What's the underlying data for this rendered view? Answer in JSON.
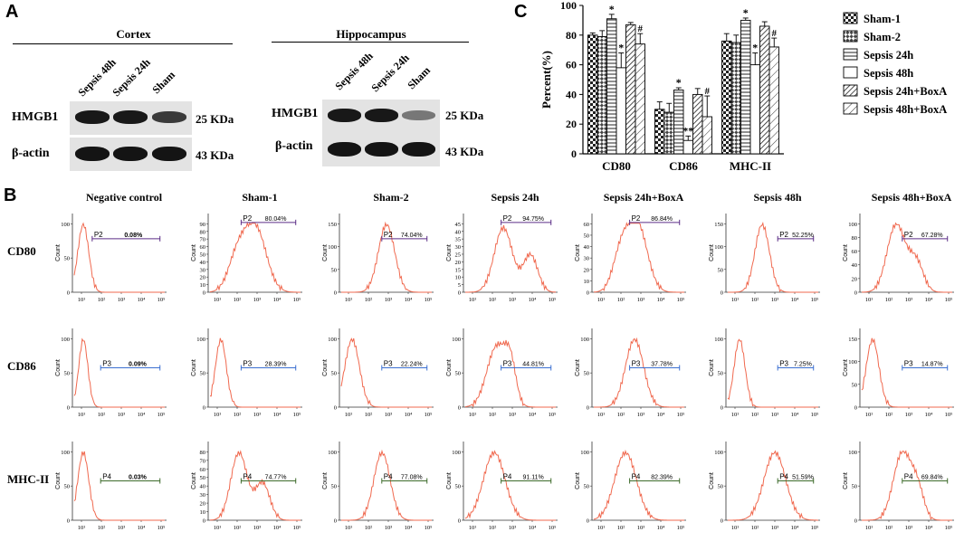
{
  "panel_a": {
    "letter": "A",
    "groups": [
      {
        "title": "Cortex",
        "lanes": [
          "Sepsis 48h",
          "Sepsis 24h",
          "Sham"
        ],
        "rows": [
          {
            "label": "HMGB1",
            "kda": "25 KDa",
            "intensity": [
              1.0,
              1.0,
              0.85
            ]
          },
          {
            "label": "β-actin",
            "kda": "43 KDa",
            "intensity": [
              1.0,
              1.0,
              1.0
            ]
          }
        ]
      },
      {
        "title": "Hippocampus",
        "lanes": [
          "Sepsis 48h",
          "Sepsis 24h",
          "Sham"
        ],
        "rows": [
          {
            "label": "HMGB1",
            "kda": "25 KDa",
            "intensity": [
              1.0,
              1.0,
              0.6
            ]
          },
          {
            "label": "β-actin",
            "kda": "43 KDa",
            "intensity": [
              1.0,
              1.0,
              1.0
            ]
          }
        ]
      }
    ]
  },
  "panel_b": {
    "letter": "B",
    "columns": [
      "Negative control",
      "Sham-1",
      "Sham-2",
      "Sepsis 24h",
      "Sepsis 24h+BoxA",
      "Sepsis 48h",
      "Sepsis 48h+BoxA"
    ],
    "rows": [
      "CD80",
      "CD86",
      "MHC-II"
    ],
    "y_label": "Count",
    "x_tick_labels": [
      "10¹",
      "10²",
      "10³",
      "10⁴",
      "10⁵"
    ],
    "cells": [
      [
        {
          "gate": "P2",
          "pct": "0.08%",
          "ymax": 100,
          "yticks": [
            0,
            50,
            100
          ],
          "gate_color": "#5b2d86"
        },
        {
          "gate": "P2",
          "pct": "80.04%",
          "ymax": 90,
          "yticks": [
            0,
            10,
            20,
            30,
            40,
            50,
            60,
            70,
            80,
            90
          ],
          "gate_color": "#5b2d86"
        },
        {
          "gate": "P2",
          "pct": "74.04%",
          "ymax": 150,
          "yticks": [
            0,
            50,
            100,
            150
          ],
          "gate_color": "#5b2d86"
        },
        {
          "gate": "P2",
          "pct": "94.75%",
          "ymax": 45,
          "yticks": [
            0,
            5,
            10,
            15,
            20,
            25,
            30,
            35,
            40,
            45
          ],
          "gate_color": "#5b2d86"
        },
        {
          "gate": "P2",
          "pct": "86.84%",
          "ymax": 60,
          "yticks": [
            0,
            10,
            20,
            30,
            40,
            50,
            60
          ],
          "gate_color": "#5b2d86"
        },
        {
          "gate": "P2",
          "pct": "52.25%",
          "ymax": 150,
          "yticks": [
            0,
            50,
            100,
            150
          ],
          "gate_color": "#5b2d86"
        },
        {
          "gate": "P2",
          "pct": "67.28%",
          "ymax": 100,
          "yticks": [
            0,
            20,
            40,
            60,
            80,
            100
          ],
          "gate_color": "#5b2d86"
        }
      ],
      [
        {
          "gate": "P3",
          "pct": "0.09%",
          "ymax": 100,
          "yticks": [
            0,
            50,
            100
          ],
          "gate_color": "#3b6fd1"
        },
        {
          "gate": "P3",
          "pct": "28.39%",
          "ymax": 100,
          "yticks": [
            0,
            50,
            100
          ],
          "gate_color": "#3b6fd1"
        },
        {
          "gate": "P3",
          "pct": "22.24%",
          "ymax": 100,
          "yticks": [
            0,
            50,
            100
          ],
          "gate_color": "#3b6fd1"
        },
        {
          "gate": "P3",
          "pct": "44.81%",
          "ymax": 100,
          "yticks": [
            0,
            50,
            100
          ],
          "gate_color": "#3b6fd1"
        },
        {
          "gate": "P3",
          "pct": "37.78%",
          "ymax": 100,
          "yticks": [
            0,
            50,
            100
          ],
          "gate_color": "#3b6fd1"
        },
        {
          "gate": "P3",
          "pct": "7.25%",
          "ymax": 100,
          "yticks": [
            0,
            50,
            100
          ],
          "gate_color": "#3b6fd1"
        },
        {
          "gate": "P3",
          "pct": "14.87%",
          "ymax": 150,
          "yticks": [
            0,
            50,
            100,
            150
          ],
          "gate_color": "#3b6fd1"
        }
      ],
      [
        {
          "gate": "P4",
          "pct": "0.03%",
          "ymax": 100,
          "yticks": [
            0,
            50,
            100
          ],
          "gate_color": "#3d6b2b"
        },
        {
          "gate": "P4",
          "pct": "74.77%",
          "ymax": 80,
          "yticks": [
            0,
            10,
            20,
            30,
            40,
            50,
            60,
            70,
            80
          ],
          "gate_color": "#3d6b2b"
        },
        {
          "gate": "P4",
          "pct": "77.08%",
          "ymax": 100,
          "yticks": [
            0,
            50,
            100
          ],
          "gate_color": "#3d6b2b"
        },
        {
          "gate": "P4",
          "pct": "91.11%",
          "ymax": 100,
          "yticks": [
            0,
            50,
            100
          ],
          "gate_color": "#3d6b2b"
        },
        {
          "gate": "P4",
          "pct": "82.39%",
          "ymax": 100,
          "yticks": [
            0,
            50,
            100
          ],
          "gate_color": "#3d6b2b"
        },
        {
          "gate": "P4",
          "pct": "51.59%",
          "ymax": 100,
          "yticks": [
            0,
            50,
            100
          ],
          "gate_color": "#3d6b2b"
        },
        {
          "gate": "P4",
          "pct": "69.84%",
          "ymax": 100,
          "yticks": [
            0,
            50,
            100
          ],
          "gate_color": "#3d6b2b"
        }
      ]
    ],
    "curve_color": "#f0694f"
  },
  "chart_data": {
    "type": "bar",
    "panel_letter": "C",
    "title": "",
    "xlabel": "",
    "ylabel": "Percent(%)",
    "ylim": [
      0,
      100
    ],
    "yticks": [
      0,
      20,
      40,
      60,
      80,
      100
    ],
    "categories": [
      "CD80",
      "CD86",
      "MHC-II"
    ],
    "series": [
      {
        "name": "Sham-1",
        "pattern": "check",
        "values": [
          80,
          30,
          76
        ],
        "errors": [
          1.5,
          5,
          5
        ]
      },
      {
        "name": "Sham-2",
        "pattern": "diag-check",
        "values": [
          79,
          28,
          75
        ],
        "errors": [
          4,
          6,
          5
        ]
      },
      {
        "name": "Sepsis 24h",
        "pattern": "hlines",
        "values": [
          91,
          43,
          90
        ],
        "errors": [
          3,
          1.5,
          1.5
        ]
      },
      {
        "name": "Sepsis 48h",
        "pattern": "blank",
        "values": [
          58,
          9,
          60
        ],
        "errors": [
          10,
          3,
          8
        ]
      },
      {
        "name": "Sepsis 24h+BoxA",
        "pattern": "diag-dense",
        "values": [
          87,
          40,
          86
        ],
        "errors": [
          1.5,
          4,
          3
        ]
      },
      {
        "name": "Sepsis 48h+BoxA",
        "pattern": "diag-sparse",
        "values": [
          74,
          25,
          72
        ],
        "errors": [
          7,
          14,
          6
        ]
      }
    ],
    "annotations": [
      {
        "category": "CD80",
        "series": "Sepsis 24h",
        "text": "*"
      },
      {
        "category": "CD80",
        "series": "Sepsis 48h",
        "text": "*"
      },
      {
        "category": "CD80",
        "series": "Sepsis 48h+BoxA",
        "text": "#"
      },
      {
        "category": "CD86",
        "series": "Sepsis 24h",
        "text": "*"
      },
      {
        "category": "CD86",
        "series": "Sepsis 48h",
        "text": "**"
      },
      {
        "category": "CD86",
        "series": "Sepsis 48h+BoxA",
        "text": "#"
      },
      {
        "category": "MHC-II",
        "series": "Sepsis 24h",
        "text": "*"
      },
      {
        "category": "MHC-II",
        "series": "Sepsis 48h",
        "text": "*"
      },
      {
        "category": "MHC-II",
        "series": "Sepsis 48h+BoxA",
        "text": "#"
      }
    ],
    "legend_position": "right"
  }
}
